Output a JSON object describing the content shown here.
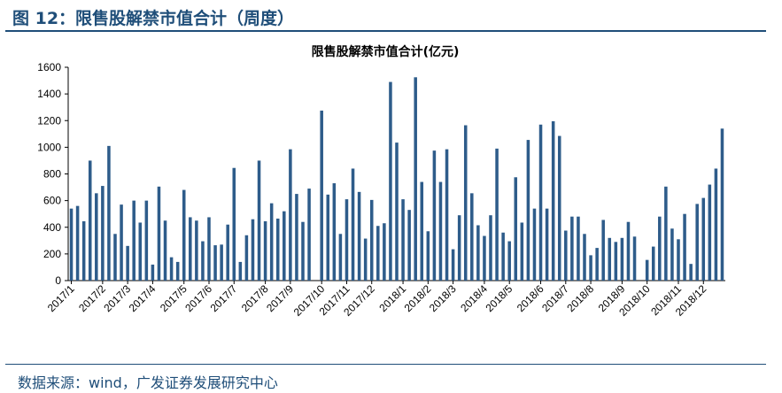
{
  "figure": {
    "title": "图 12：限售股解禁市值合计（周度）",
    "source": "数据来源：wind，广发证券发展研究中心"
  },
  "chart_data": {
    "type": "bar",
    "title": "限售股解禁市值合计(亿元)",
    "xlabel": "",
    "ylabel": "",
    "ylim": [
      0,
      1600
    ],
    "yticks": [
      0,
      200,
      400,
      600,
      800,
      1000,
      1200,
      1400,
      1600
    ],
    "grid": false,
    "legend": "none",
    "color": "#2e5c8a",
    "x_tick_labels": [
      "2017/1",
      "2017/2",
      "2017/3",
      "2017/4",
      "2017/5",
      "2017/6",
      "2017/7",
      "2017/8",
      "2017/9",
      "2017/10",
      "2017/11",
      "2017/12",
      "2018/1",
      "2018/2",
      "2018/3",
      "2018/4",
      "2018/5",
      "2018/6",
      "2018/7",
      "2018/8",
      "2018/9",
      "2018/10",
      "2018/11",
      "2018/12"
    ],
    "x_tick_positions": [
      0,
      5,
      9,
      13,
      18,
      22,
      26,
      31,
      35,
      40,
      44,
      48,
      53,
      57,
      61,
      66,
      70,
      75,
      79,
      83,
      88,
      92,
      97,
      101
    ],
    "values": [
      540,
      560,
      445,
      900,
      655,
      710,
      1010,
      350,
      570,
      260,
      600,
      435,
      600,
      120,
      705,
      450,
      175,
      140,
      680,
      475,
      450,
      295,
      475,
      265,
      270,
      420,
      845,
      140,
      340,
      460,
      900,
      445,
      580,
      465,
      520,
      985,
      650,
      440,
      690,
      0,
      1275,
      645,
      730,
      350,
      610,
      840,
      665,
      315,
      605,
      410,
      430,
      1490,
      1035,
      610,
      530,
      1525,
      740,
      370,
      975,
      740,
      985,
      235,
      490,
      1165,
      655,
      415,
      335,
      490,
      990,
      360,
      295,
      775,
      435,
      1055,
      540,
      1170,
      540,
      1195,
      1085,
      375,
      480,
      480,
      350,
      190,
      245,
      455,
      320,
      290,
      320,
      440,
      330,
      0,
      155,
      255,
      480,
      705,
      390,
      310,
      500,
      125,
      575,
      620,
      720,
      840,
      1140
    ]
  }
}
